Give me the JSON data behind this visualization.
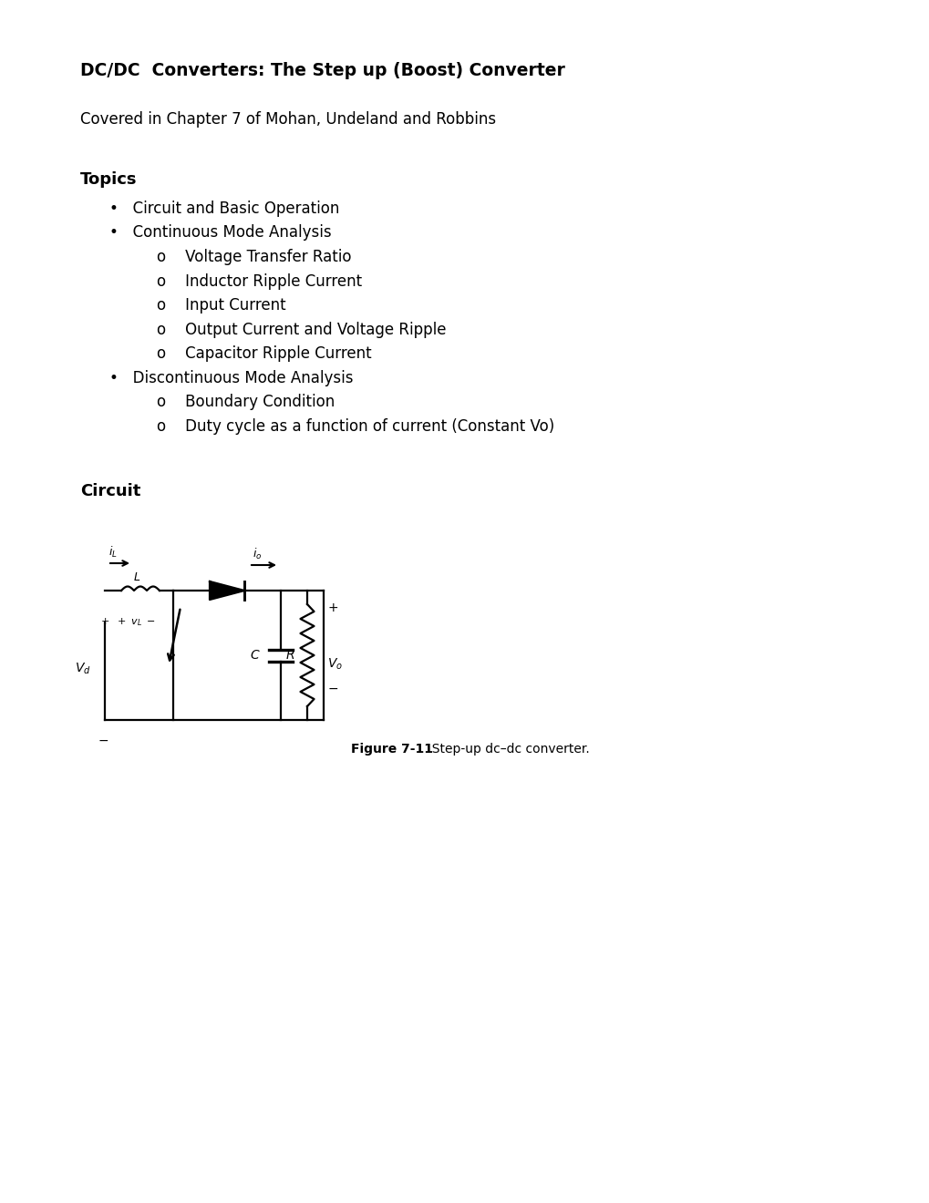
{
  "title": "DC/DC  Converters: The Step up (Boost) Converter",
  "subtitle": "Covered in Chapter 7 of Mohan, Undeland and Robbins",
  "topics_heading": "Topics",
  "bullet1": "Circuit and Basic Operation",
  "bullet2": "Continuous Mode Analysis",
  "sub2_1": "Voltage Transfer Ratio",
  "sub2_2": "Inductor Ripple Current",
  "sub2_3": "Input Current",
  "sub2_4": "Output Current and Voltage Ripple",
  "sub2_5": "Capacitor Ripple Current",
  "bullet3": "Discontinuous Mode Analysis",
  "sub3_1": "Boundary Condition",
  "sub3_2": "Duty cycle as a function of current (Constant Vo)",
  "circuit_heading": "Circuit",
  "figure_caption_bold": "Figure 7-11",
  "figure_caption_normal": "  Step-up dc–dc converter.",
  "bg_color": "#ffffff",
  "text_color": "#000000"
}
